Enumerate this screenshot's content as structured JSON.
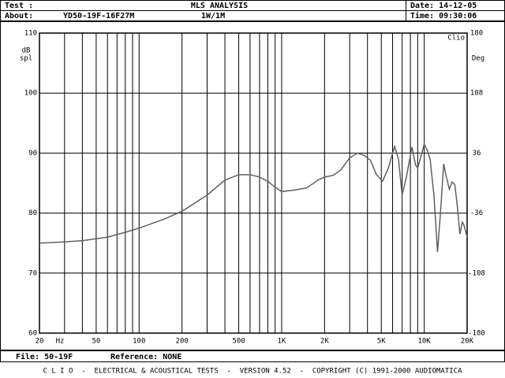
{
  "header": {
    "test_label": "Test :",
    "title": "MLS ANALYSIS",
    "date": "Date: 14-12-05",
    "about_label": "About:",
    "about": "YD50-19F-16F27M",
    "level": "1W/1M",
    "time": "Time: 09:30:06"
  },
  "chart_data": {
    "type": "line",
    "brand": "Clio",
    "y_label_1": "dB",
    "y_label_2": "spl",
    "y2_label": "Deg",
    "x_unit": "Hz",
    "xlog": true,
    "xlim": [
      20,
      20000
    ],
    "xticks": [
      20,
      50,
      100,
      200,
      500,
      {
        "value": 1000,
        "label": "1K"
      },
      {
        "value": 2000,
        "label": "2K"
      },
      {
        "value": 5000,
        "label": "5K"
      },
      {
        "value": 10000,
        "label": "10K"
      },
      {
        "value": 20000,
        "label": "20K"
      }
    ],
    "x_minor_grid": [
      30,
      40,
      60,
      70,
      80,
      90,
      300,
      400,
      600,
      700,
      800,
      900,
      3000,
      4000,
      6000,
      7000,
      8000,
      9000
    ],
    "ylim": [
      60,
      110
    ],
    "yticks": [
      60,
      70,
      80,
      90,
      100,
      110
    ],
    "y2lim": [
      -180,
      180
    ],
    "y2ticks": [
      -180,
      -108,
      -36,
      36,
      108,
      180
    ],
    "grid": true,
    "series": [
      {
        "name": "SPL",
        "color": "#606060",
        "x": [
          20,
          30,
          40,
          60,
          80,
          100,
          150,
          200,
          300,
          400,
          500,
          600,
          700,
          800,
          900,
          1000,
          1200,
          1500,
          1800,
          2000,
          2300,
          2600,
          3000,
          3400,
          3800,
          4200,
          4600,
          5100,
          5600,
          6200,
          6600,
          7000,
          7500,
          8200,
          8700,
          9000,
          9500,
          10000,
          10500,
          11000,
          11700,
          12400,
          13000,
          13700,
          14300,
          15000,
          15700,
          16400,
          17100,
          17800,
          18500,
          19000,
          20000
        ],
        "values": [
          75,
          75.2,
          75.4,
          76,
          76.8,
          77.5,
          79,
          80.3,
          83,
          85.5,
          86.4,
          86.4,
          86,
          85.3,
          84.3,
          83.6,
          83.8,
          84.2,
          85.5,
          86,
          86.3,
          87.2,
          89.2,
          90,
          89.6,
          88.8,
          86.5,
          85.3,
          87.5,
          91.1,
          89,
          83,
          86,
          91,
          88,
          87.5,
          89.5,
          91.5,
          90.5,
          89,
          83,
          73.5,
          80,
          88.2,
          86,
          84,
          85.2,
          84.7,
          81,
          76.5,
          78.5,
          78,
          76
        ]
      }
    ]
  },
  "footer": {
    "file": "File: 50-19F",
    "reference": "Reference: NONE",
    "credits": "C L I O  -  ELECTRICAL & ACOUSTICAL TESTS  -  VERSION 4.52  -  COPYRIGHT (C) 1991-2000 AUDIOMATICA"
  }
}
